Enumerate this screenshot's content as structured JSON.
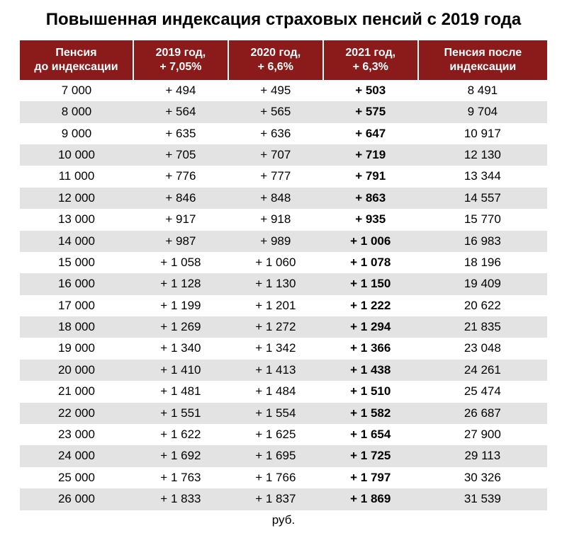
{
  "title": "Повышенная индексация страховых пенсий с 2019 года",
  "footer_unit": "руб.",
  "table": {
    "type": "table",
    "header_bg": "#8b1a1a",
    "header_color": "#ffffff",
    "row_alt_bg": "#e3e3e3",
    "row_bg": "#ffffff",
    "text_color": "#000000",
    "bold_column_index": 3,
    "columns": [
      {
        "line1": "Пенсия",
        "line2": "до индексации"
      },
      {
        "line1": "2019 год,",
        "line2": "+ 7,05%"
      },
      {
        "line1": "2020 год,",
        "line2": "+ 6,6%"
      },
      {
        "line1": "2021 год,",
        "line2": "+ 6,3%"
      },
      {
        "line1": "Пенсия после",
        "line2": "индексации"
      }
    ],
    "rows": [
      [
        "7 000",
        "+ 494",
        "+ 495",
        "+ 503",
        "8 491"
      ],
      [
        "8 000",
        "+ 564",
        "+ 565",
        "+ 575",
        "9 704"
      ],
      [
        "9 000",
        "+ 635",
        "+ 636",
        "+ 647",
        "10 917"
      ],
      [
        "10 000",
        "+ 705",
        "+ 707",
        "+ 719",
        "12 130"
      ],
      [
        "11 000",
        "+ 776",
        "+ 777",
        "+ 791",
        "13 344"
      ],
      [
        "12 000",
        "+ 846",
        "+ 848",
        "+ 863",
        "14 557"
      ],
      [
        "13 000",
        "+ 917",
        "+ 918",
        "+ 935",
        "15 770"
      ],
      [
        "14 000",
        "+ 987",
        "+ 989",
        "+ 1 006",
        "16 983"
      ],
      [
        "15 000",
        "+ 1 058",
        "+ 1 060",
        "+ 1 078",
        "18 196"
      ],
      [
        "16 000",
        "+ 1 128",
        "+ 1 130",
        "+ 1 150",
        "19 409"
      ],
      [
        "17 000",
        "+ 1 199",
        "+ 1 201",
        "+ 1 222",
        "20 622"
      ],
      [
        "18 000",
        "+ 1 269",
        "+ 1 272",
        "+ 1 294",
        "21 835"
      ],
      [
        "19 000",
        "+ 1 340",
        "+ 1 342",
        "+ 1 366",
        "23 048"
      ],
      [
        "20 000",
        "+ 1 410",
        "+ 1 413",
        "+ 1 438",
        "24 261"
      ],
      [
        "21 000",
        "+ 1 481",
        "+ 1 484",
        "+ 1 510",
        "25 474"
      ],
      [
        "22 000",
        "+ 1 551",
        "+ 1 554",
        "+ 1 582",
        "26 687"
      ],
      [
        "23 000",
        "+ 1 622",
        "+ 1 625",
        "+ 1 654",
        "27 900"
      ],
      [
        "24 000",
        "+ 1 692",
        "+ 1 695",
        "+ 1 725",
        "29 113"
      ],
      [
        "25 000",
        "+ 1 763",
        "+ 1 766",
        "+ 1 797",
        "30 326"
      ],
      [
        "26 000",
        "+ 1 833",
        "+ 1 837",
        "+ 1 869",
        "31 539"
      ]
    ]
  }
}
